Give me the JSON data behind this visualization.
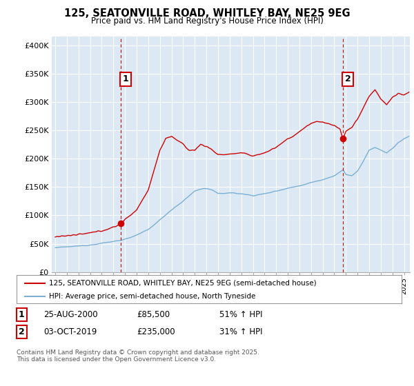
{
  "title": "125, SEATONVILLE ROAD, WHITLEY BAY, NE25 9EG",
  "subtitle": "Price paid vs. HM Land Registry's House Price Index (HPI)",
  "ylabel_ticks": [
    "£0",
    "£50K",
    "£100K",
    "£150K",
    "£200K",
    "£250K",
    "£300K",
    "£350K",
    "£400K"
  ],
  "ytick_values": [
    0,
    50000,
    100000,
    150000,
    200000,
    250000,
    300000,
    350000,
    400000
  ],
  "ylim": [
    0,
    415000
  ],
  "xlim_start": 1994.7,
  "xlim_end": 2025.5,
  "purchase1_date": 2000.65,
  "purchase1_price": 85500,
  "purchase2_date": 2019.75,
  "purchase2_price": 235000,
  "house_color": "#cc0000",
  "hpi_color": "#7bafd4",
  "vline_color": "#cc0000",
  "plot_bg_color": "#dce9f5",
  "background_color": "#ffffff",
  "grid_color": "#ffffff",
  "legend_label_house": "125, SEATONVILLE ROAD, WHITLEY BAY, NE25 9EG (semi-detached house)",
  "legend_label_hpi": "HPI: Average price, semi-detached house, North Tyneside",
  "footnote": "Contains HM Land Registry data © Crown copyright and database right 2025.\nThis data is licensed under the Open Government Licence v3.0."
}
